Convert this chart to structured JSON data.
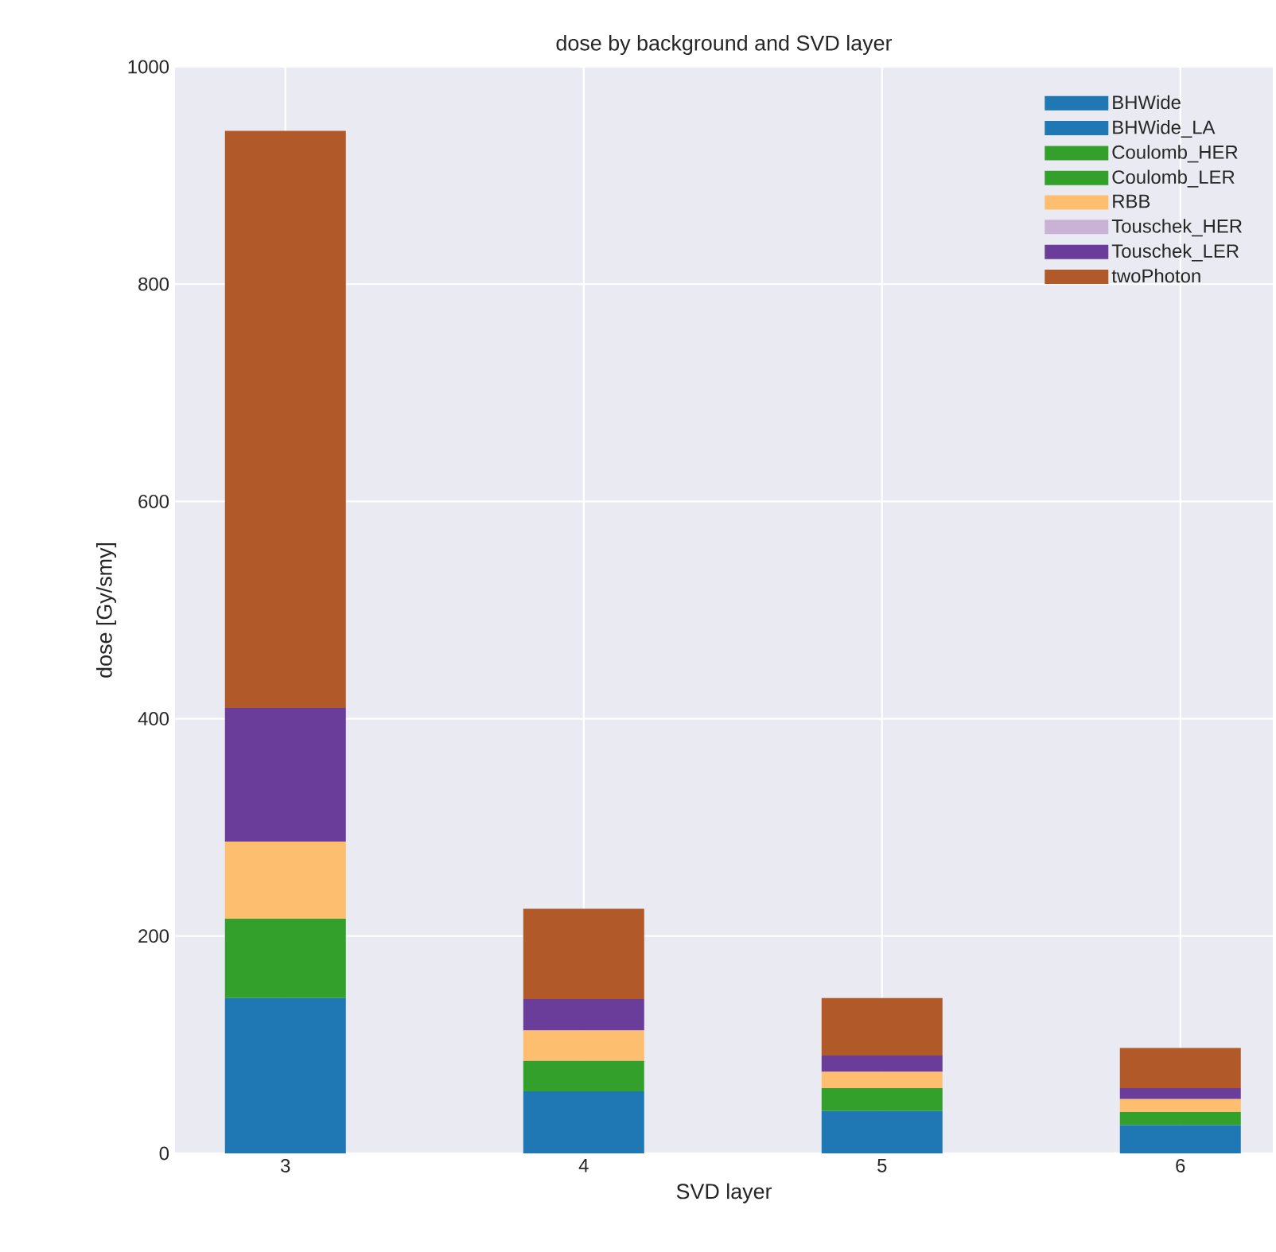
{
  "chart_data": {
    "type": "bar",
    "title": "dose by background and SVD layer",
    "xlabel": "SVD layer",
    "ylabel": "dose [Gy/smy]",
    "categories": [
      "3",
      "4",
      "5",
      "6"
    ],
    "stacked": true,
    "series": [
      {
        "name": "BHWide",
        "color": "#1f78b4",
        "values": [
          143,
          57,
          39,
          26
        ]
      },
      {
        "name": "BHWide_LA",
        "color": "#1f78b4",
        "values": [
          0,
          0,
          0,
          0
        ]
      },
      {
        "name": "Coulomb_HER",
        "color": "#33a02c",
        "values": [
          73,
          28,
          21,
          12
        ]
      },
      {
        "name": "Coulomb_LER",
        "color": "#33a02c",
        "values": [
          0,
          0,
          0,
          0
        ]
      },
      {
        "name": "RBB",
        "color": "#fdbf6f",
        "values": [
          71,
          28,
          15,
          12
        ]
      },
      {
        "name": "Touschek_HER",
        "color": "#cab2d6",
        "values": [
          0,
          0,
          0,
          0
        ]
      },
      {
        "name": "Touschek_LER",
        "color": "#6a3d9a",
        "values": [
          123,
          29,
          15,
          10
        ]
      },
      {
        "name": "twoPhoton",
        "color": "#b15928",
        "values": [
          531,
          83,
          53,
          37
        ]
      }
    ],
    "ylim": [
      0,
      1000
    ],
    "yticks": [
      0,
      200,
      400,
      600,
      800,
      1000
    ],
    "grid": true,
    "legend": "top right"
  }
}
